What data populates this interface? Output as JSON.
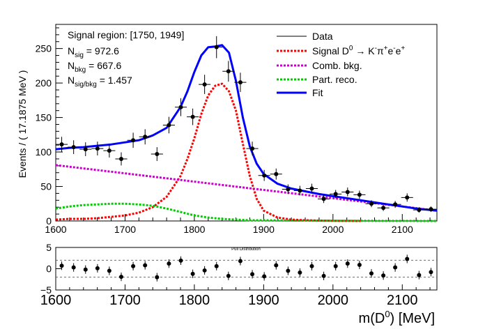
{
  "chart_data": [
    {
      "type": "scatter",
      "panel": "main",
      "ylabel": "Events / ( 17.1875 MeV )",
      "xlabel": "",
      "xlim": [
        1600,
        2150
      ],
      "ylim": [
        0,
        285
      ],
      "xticks": [
        1600,
        1700,
        1800,
        1900,
        2000,
        2100
      ],
      "yticks": [
        0,
        50,
        100,
        150,
        200,
        250
      ],
      "info": {
        "region": "Signal region: [1750, 1949]",
        "n_sig_label": "N",
        "n_sig_sub": "sig",
        "n_sig_value": " = 972.6",
        "n_bkg_label": "N",
        "n_bkg_sub": "bkg",
        "n_bkg_value": " = 667.6",
        "ratio_label": "N",
        "ratio_sub": "sig/bkg",
        "ratio_value": " = 1.457"
      },
      "legend": {
        "position": "top-right",
        "entries": [
          {
            "label": "Data",
            "color": "#000000",
            "style": "solid-thin"
          },
          {
            "label": "Signal D",
            "sup": "0",
            "rest": " → K",
            "sup2": "-",
            "rest2": "π",
            "sup3": "+",
            "rest3": "e",
            "sup4": "-",
            "rest4": "e",
            "sup5": "+",
            "color": "#ff0000",
            "style": "dotted"
          },
          {
            "label": "Comb. bkg.",
            "color": "#cc00cc",
            "style": "dotted"
          },
          {
            "label": "Part. reco.",
            "color": "#00cc00",
            "style": "dotted"
          },
          {
            "label": "Fit",
            "color": "#0000ff",
            "style": "solid-thick"
          }
        ]
      },
      "series": [
        {
          "name": "Data",
          "color": "#000000",
          "x": [
            1608.6,
            1625.8,
            1643.0,
            1660.2,
            1677.3,
            1694.5,
            1711.7,
            1728.9,
            1746.1,
            1763.3,
            1780.5,
            1797.7,
            1814.8,
            1832.0,
            1849.2,
            1866.4,
            1883.6,
            1900.8,
            1918.0,
            1935.2,
            1952.3,
            1969.5,
            1986.7,
            2003.9,
            2021.1,
            2038.3,
            2055.5,
            2072.7,
            2089.8,
            2107.0,
            2124.2,
            2141.4
          ],
          "y": [
            111,
            107,
            104,
            105,
            102,
            90,
            117,
            122,
            97,
            139,
            165,
            151,
            198,
            252,
            217,
            201,
            105,
            66,
            68,
            46,
            44,
            47,
            32,
            39,
            42,
            38,
            25,
            19,
            24,
            34,
            16,
            17
          ],
          "yerr": [
            11,
            10,
            10,
            10,
            10,
            9.5,
            11,
            11,
            10,
            12,
            13,
            12,
            14,
            16,
            15,
            14,
            10,
            8,
            8,
            7,
            7,
            7,
            6,
            6,
            6.5,
            6,
            5,
            4.5,
            5,
            6,
            4,
            4
          ]
        },
        {
          "name": "Signal D0 → K-π+e-e+",
          "color": "#ff0000",
          "x": [
            1600,
            1620,
            1640,
            1660,
            1680,
            1700,
            1720,
            1740,
            1760,
            1780,
            1790,
            1800,
            1810,
            1820,
            1830,
            1840,
            1850,
            1860,
            1870,
            1880,
            1890,
            1900,
            1920,
            1940,
            1960,
            1980,
            2000,
            2020,
            2040
          ],
          "y": [
            2,
            3,
            3,
            4,
            6,
            8,
            12,
            20,
            35,
            65,
            90,
            120,
            155,
            182,
            196,
            199,
            188,
            160,
            112,
            65,
            32,
            15,
            5,
            2,
            1,
            0.5,
            0.2,
            0.1,
            0
          ]
        },
        {
          "name": "Comb. bkg.",
          "color": "#cc00cc",
          "x": [
            1600,
            1700,
            1800,
            1900,
            2000,
            2100,
            2150
          ],
          "y": [
            81,
            69,
            57,
            45,
            33,
            21,
            15
          ]
        },
        {
          "name": "Part. reco.",
          "color": "#00cc00",
          "x": [
            1600,
            1620,
            1640,
            1660,
            1680,
            1700,
            1720,
            1740,
            1760,
            1780,
            1800,
            1820,
            1840,
            1860,
            1880,
            1900,
            1950,
            2000,
            2150
          ],
          "y": [
            18,
            21,
            23,
            24,
            25,
            25,
            24,
            22,
            18,
            13,
            8,
            5,
            3,
            2,
            1,
            1,
            0.5,
            0.3,
            0
          ]
        },
        {
          "name": "Fit",
          "color": "#0000ff",
          "x": [
            1600,
            1620,
            1640,
            1660,
            1680,
            1700,
            1720,
            1740,
            1760,
            1780,
            1790,
            1800,
            1810,
            1820,
            1830,
            1840,
            1850,
            1860,
            1870,
            1880,
            1890,
            1900,
            1920,
            1940,
            1960,
            1980,
            2000,
            2020,
            2040,
            2060,
            2080,
            2100,
            2120,
            2150
          ],
          "y": [
            104,
            106,
            107,
            109,
            111,
            114,
            117,
            124,
            135,
            165,
            188,
            216,
            240,
            252,
            253,
            255,
            244,
            203,
            150,
            108,
            83,
            68,
            54,
            47,
            43,
            39,
            36,
            33,
            30,
            27,
            24,
            21,
            18,
            15
          ]
        }
      ]
    },
    {
      "type": "scatter",
      "panel": "pull",
      "title": "Pull Distribution",
      "xlabel": "m(D",
      "xlabel_sup": "0",
      "xlabel_rest": ") [MeV]",
      "xlim": [
        1600,
        2150
      ],
      "ylim": [
        -5,
        5
      ],
      "xticks": [
        1600,
        1700,
        1800,
        1900,
        2000,
        2100
      ],
      "yticks": [
        -5,
        0,
        5
      ],
      "ref_lines": [
        -2,
        2
      ],
      "series": [
        {
          "name": "Pull",
          "color": "#000000",
          "x": [
            1608.6,
            1625.8,
            1643.0,
            1660.2,
            1677.3,
            1694.5,
            1711.7,
            1728.9,
            1746.1,
            1763.3,
            1780.5,
            1797.7,
            1814.8,
            1832.0,
            1849.2,
            1866.4,
            1883.6,
            1900.8,
            1918.0,
            1935.2,
            1952.3,
            1969.5,
            1986.7,
            2003.9,
            2021.1,
            2038.3,
            2055.5,
            2072.7,
            2089.8,
            2107.0,
            2124.2,
            2141.4
          ],
          "y": [
            0.7,
            0.3,
            -0.2,
            0.1,
            -0.5,
            -1.9,
            0.6,
            0.8,
            -2.0,
            1.2,
            1.9,
            -1.2,
            -0.4,
            0.6,
            -1.7,
            1.8,
            -1.3,
            -1.8,
            0.8,
            -0.5,
            -0.9,
            0.6,
            -1.7,
            0.6,
            1.2,
            0.9,
            -1.1,
            -1.6,
            0.3,
            2.3,
            -1.5,
            -0.8
          ]
        }
      ]
    }
  ]
}
